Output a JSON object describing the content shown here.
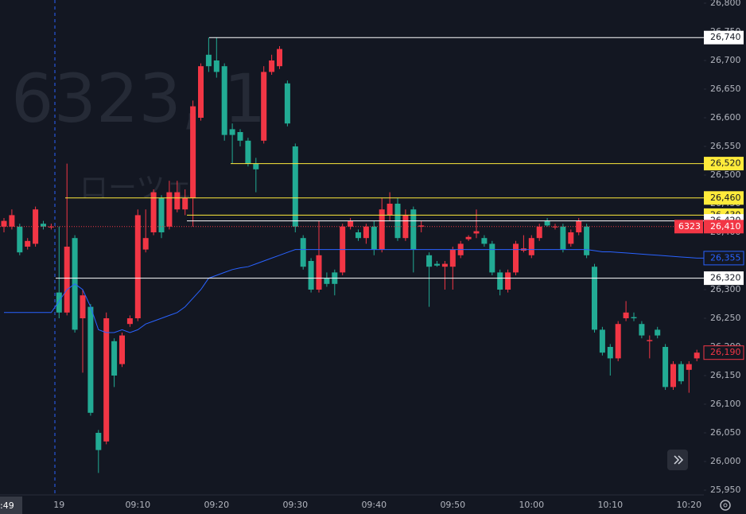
{
  "chart_data": {
    "type": "candlestick",
    "watermark": "6323, 1",
    "watermark_sub": "ローツェ",
    "symbol": "6323",
    "cursor_time": ":49",
    "categories": [
      null,
      null,
      null,
      null,
      null,
      null,
      null,
      "19",
      null,
      null,
      null,
      null,
      null,
      null,
      null,
      null,
      null,
      "09:10",
      null,
      null,
      null,
      null,
      null,
      null,
      null,
      null,
      null,
      "09:20",
      null,
      null,
      null,
      null,
      null,
      null,
      null,
      null,
      null,
      "09:30",
      null,
      null,
      null,
      null,
      null,
      null,
      null,
      null,
      null,
      "09:40",
      null,
      null,
      null,
      null,
      null,
      null,
      null,
      null,
      null,
      "09:50",
      null,
      null,
      null,
      null,
      null,
      null,
      null,
      null,
      null,
      "10:00",
      null,
      null,
      null,
      null,
      null,
      null,
      null,
      null,
      null,
      "10:10",
      null,
      null,
      null,
      null,
      null,
      null,
      null,
      null,
      null,
      "10:20",
      null
    ],
    "open": [
      26410,
      26410,
      26410,
      26375,
      26380,
      26415,
      26410,
      26295,
      26260,
      26390,
      26250,
      26270,
      26050,
      26035,
      26210,
      26170,
      26240,
      26250,
      26370,
      26400,
      26460,
      26410,
      26440,
      26440,
      26460,
      26600,
      26710,
      26700,
      26690,
      26580,
      26575,
      26560,
      26520,
      26560,
      26680,
      26690,
      26660,
      26550,
      26390,
      26350,
      26300,
      26320,
      26330,
      26330,
      26410,
      26400,
      26390,
      26410,
      26370,
      26430,
      26450,
      26390,
      26440,
      26410,
      26360,
      26345,
      26340,
      26340,
      26360,
      26388,
      26398,
      26390,
      26380,
      26330,
      26300,
      26330,
      26368,
      26360,
      26390,
      26420,
      26410,
      26410,
      26380,
      26400,
      26410,
      26340,
      26230,
      26200,
      26180,
      26250,
      26252,
      26240,
      26210,
      26230,
      26200,
      26130,
      26170,
      26160,
      26180
    ],
    "high": [
      26425,
      26440,
      26415,
      26390,
      26445,
      26420,
      26415,
      26410,
      26520,
      26395,
      26300,
      26275,
      26055,
      26260,
      26215,
      26225,
      26255,
      26440,
      26440,
      26475,
      26465,
      26490,
      26490,
      26475,
      26630,
      26695,
      26740,
      26740,
      26695,
      26590,
      26580,
      26565,
      26530,
      26690,
      26710,
      26725,
      26665,
      26555,
      26395,
      26355,
      26420,
      26330,
      26335,
      26415,
      26425,
      26405,
      26415,
      26420,
      26460,
      26470,
      26460,
      26440,
      26445,
      26420,
      26365,
      26350,
      26350,
      26375,
      26385,
      26395,
      26440,
      26395,
      26385,
      26335,
      26335,
      26385,
      26395,
      26395,
      26415,
      26425,
      26415,
      26415,
      26405,
      26425,
      26415,
      26345,
      26235,
      26205,
      26245,
      26280,
      26260,
      26245,
      26220,
      26235,
      26205,
      26175,
      26175,
      26175,
      26195
    ],
    "low": [
      26400,
      26405,
      26360,
      26370,
      26375,
      26405,
      26405,
      26250,
      26255,
      26225,
      26155,
      26080,
      25980,
      26030,
      26130,
      26165,
      26235,
      26245,
      26365,
      26395,
      26390,
      26405,
      26435,
      26430,
      26410,
      26595,
      26680,
      26670,
      26560,
      26520,
      26550,
      26515,
      26470,
      26555,
      26675,
      26685,
      26585,
      26400,
      26335,
      26295,
      26295,
      26305,
      26290,
      26325,
      26405,
      26385,
      26380,
      26360,
      26365,
      26420,
      26385,
      26385,
      26330,
      26400,
      26270,
      26340,
      26300,
      26300,
      26355,
      26385,
      26390,
      26375,
      26325,
      26290,
      26295,
      26325,
      26365,
      26355,
      26385,
      26410,
      26405,
      26365,
      26375,
      26395,
      26355,
      26225,
      26185,
      26150,
      26175,
      26245,
      26245,
      26215,
      26180,
      26215,
      26125,
      26125,
      26135,
      26120,
      26175
    ],
    "close": [
      26420,
      26430,
      26365,
      26385,
      26440,
      26410,
      26410,
      26260,
      26375,
      26230,
      26290,
      26085,
      26020,
      26250,
      26150,
      26220,
      26250,
      26430,
      26390,
      26470,
      26400,
      26470,
      26470,
      26460,
      26620,
      26690,
      26690,
      26680,
      26570,
      26570,
      26560,
      26520,
      26510,
      26680,
      26700,
      26720,
      26590,
      26410,
      26340,
      26300,
      26360,
      26310,
      26310,
      26410,
      26420,
      26390,
      26410,
      26370,
      26440,
      26450,
      26390,
      26430,
      26370,
      26412,
      26340,
      26342,
      26345,
      26370,
      26380,
      26392,
      26402,
      26380,
      26330,
      26300,
      26330,
      26380,
      26372,
      26390,
      26410,
      26412,
      26410,
      26370,
      26400,
      26420,
      26360,
      26230,
      26190,
      26180,
      26240,
      26260,
      26250,
      26220,
      26212,
      26220,
      26130,
      26170,
      26140,
      26170,
      26190
    ],
    "up_color": "#f23645",
    "down_color": "#22ab94",
    "ma_color": "#2962ff",
    "ma": [
      26260,
      26260,
      26260,
      26260,
      26260,
      26260,
      26260,
      26280,
      26300,
      26310,
      26300,
      26270,
      26230,
      26225,
      26225,
      26230,
      26225,
      26230,
      26240,
      26245,
      26250,
      26255,
      26260,
      26270,
      26285,
      26300,
      26320,
      26325,
      26330,
      26335,
      26338,
      26340,
      26345,
      26350,
      26355,
      26360,
      26365,
      26370,
      26370,
      26370,
      26370,
      26370,
      26370,
      26370,
      26370,
      26370,
      26370,
      26370,
      26370,
      26370,
      26370,
      26370,
      26370,
      26370,
      26370,
      26370,
      26370,
      26370,
      26370,
      26370,
      26370,
      26370,
      26370,
      26370,
      26370,
      26370,
      26370,
      26370,
      26370,
      26370,
      26370,
      26370,
      26370,
      26370,
      26370,
      26368,
      26366,
      26366,
      26365,
      26364,
      26363,
      26362,
      26361,
      26360,
      26359,
      26358,
      26357,
      26356,
      26355
    ],
    "ylim": [
      25950,
      26800
    ],
    "yticks": [
      {
        "value": 25950,
        "label": "25,950"
      },
      {
        "value": 26000,
        "label": "26,000"
      },
      {
        "value": 26050,
        "label": "26,050"
      },
      {
        "value": 26100,
        "label": "26,100"
      },
      {
        "value": 26150,
        "label": "26,150"
      },
      {
        "value": 26200,
        "label": "26,200"
      },
      {
        "value": 26250,
        "label": "26,250"
      },
      {
        "value": 26300,
        "label": "26,300"
      },
      {
        "value": 26350,
        "label": "26,350"
      },
      {
        "value": 26400,
        "label": "26,400"
      },
      {
        "value": 26450,
        "label": "26,450"
      },
      {
        "value": 26500,
        "label": "26,500"
      },
      {
        "value": 26550,
        "label": "26,550"
      },
      {
        "value": 26600,
        "label": "26,600"
      },
      {
        "value": 26650,
        "label": "26,650"
      },
      {
        "value": 26700,
        "label": "26,700"
      },
      {
        "value": 26750,
        "label": "26,750"
      },
      {
        "value": 26800,
        "label": "26,800"
      }
    ],
    "levels": [
      {
        "value": 26740,
        "label": "26,740",
        "color": "#ffffff"
      },
      {
        "value": 26520,
        "label": "26,520",
        "color": "#ffeb3b"
      },
      {
        "value": 26460,
        "label": "26,460",
        "color": "#ffeb3b"
      },
      {
        "value": 26430,
        "label": "26,430",
        "color": "#ffeb3b"
      },
      {
        "value": 26420,
        "label": "26,420",
        "color": "#ffffff"
      },
      {
        "value": 26320,
        "label": "26,320",
        "color": "#ffffff"
      }
    ],
    "last_price": {
      "value": 26410,
      "label": "26,410"
    },
    "ma_last": {
      "value": 26355,
      "label": "26,355"
    },
    "bid": {
      "value": 26190,
      "label": "26,190"
    }
  }
}
